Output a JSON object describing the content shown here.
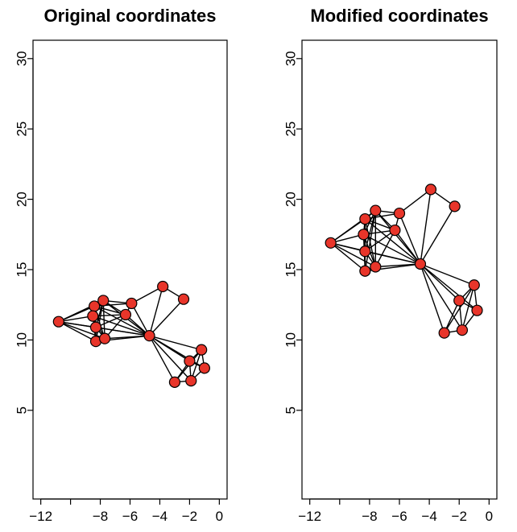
{
  "chart_data": [
    {
      "type": "network",
      "title": "Original coordinates",
      "xlim": [
        -12,
        0
      ],
      "ylim": [
        0,
        30
      ],
      "x_ticks": [
        -12,
        -8,
        -6,
        -4,
        -2,
        0
      ],
      "y_ticks": [
        5,
        10,
        15,
        20,
        25,
        30
      ],
      "node_color": "#e8352a",
      "nodes": [
        {
          "id": 0,
          "x": -10.8,
          "y": 11.3
        },
        {
          "id": 1,
          "x": -8.4,
          "y": 12.4
        },
        {
          "id": 2,
          "x": -7.8,
          "y": 12.8
        },
        {
          "id": 3,
          "x": -8.5,
          "y": 11.7
        },
        {
          "id": 4,
          "x": -8.3,
          "y": 10.9
        },
        {
          "id": 5,
          "x": -8.3,
          "y": 9.9
        },
        {
          "id": 6,
          "x": -7.7,
          "y": 10.1
        },
        {
          "id": 7,
          "x": -6.3,
          "y": 11.8
        },
        {
          "id": 8,
          "x": -5.9,
          "y": 12.6
        },
        {
          "id": 9,
          "x": -4.7,
          "y": 10.3
        },
        {
          "id": 10,
          "x": -3.8,
          "y": 13.8
        },
        {
          "id": 11,
          "x": -2.4,
          "y": 12.9
        },
        {
          "id": 12,
          "x": -1.2,
          "y": 9.3
        },
        {
          "id": 13,
          "x": -2.0,
          "y": 8.5
        },
        {
          "id": 14,
          "x": -1.0,
          "y": 8.0
        },
        {
          "id": 15,
          "x": -3.0,
          "y": 7.0
        },
        {
          "id": 16,
          "x": -1.9,
          "y": 7.1
        }
      ],
      "edges": [
        [
          0,
          1
        ],
        [
          0,
          2
        ],
        [
          0,
          3
        ],
        [
          0,
          4
        ],
        [
          0,
          5
        ],
        [
          0,
          6
        ],
        [
          0,
          9
        ],
        [
          1,
          2
        ],
        [
          1,
          3
        ],
        [
          1,
          4
        ],
        [
          1,
          5
        ],
        [
          1,
          6
        ],
        [
          1,
          7
        ],
        [
          1,
          8
        ],
        [
          1,
          9
        ],
        [
          2,
          3
        ],
        [
          2,
          4
        ],
        [
          2,
          5
        ],
        [
          2,
          6
        ],
        [
          2,
          7
        ],
        [
          2,
          8
        ],
        [
          2,
          9
        ],
        [
          3,
          4
        ],
        [
          3,
          5
        ],
        [
          3,
          6
        ],
        [
          3,
          7
        ],
        [
          3,
          9
        ],
        [
          4,
          5
        ],
        [
          4,
          6
        ],
        [
          4,
          7
        ],
        [
          4,
          9
        ],
        [
          5,
          6
        ],
        [
          5,
          9
        ],
        [
          6,
          7
        ],
        [
          6,
          9
        ],
        [
          7,
          8
        ],
        [
          7,
          9
        ],
        [
          8,
          9
        ],
        [
          8,
          10
        ],
        [
          9,
          10
        ],
        [
          10,
          11
        ],
        [
          9,
          11
        ],
        [
          9,
          12
        ],
        [
          9,
          13
        ],
        [
          9,
          14
        ],
        [
          9,
          15
        ],
        [
          9,
          16
        ],
        [
          12,
          13
        ],
        [
          12,
          14
        ],
        [
          12,
          16
        ],
        [
          13,
          14
        ],
        [
          13,
          15
        ],
        [
          13,
          16
        ],
        [
          14,
          16
        ],
        [
          15,
          16
        ],
        [
          12,
          15
        ]
      ]
    },
    {
      "type": "network",
      "title": "Modified coordinates",
      "xlim": [
        -12,
        0
      ],
      "ylim": [
        0,
        30
      ],
      "x_ticks": [
        -12,
        -8,
        -6,
        -4,
        -2,
        0
      ],
      "y_ticks": [
        5,
        10,
        15,
        20,
        25,
        30
      ],
      "node_color": "#e8352a",
      "nodes": [
        {
          "id": 0,
          "x": -10.6,
          "y": 16.9
        },
        {
          "id": 1,
          "x": -8.3,
          "y": 18.6
        },
        {
          "id": 2,
          "x": -7.6,
          "y": 19.2
        },
        {
          "id": 3,
          "x": -8.4,
          "y": 17.5
        },
        {
          "id": 4,
          "x": -8.3,
          "y": 16.3
        },
        {
          "id": 5,
          "x": -8.3,
          "y": 14.9
        },
        {
          "id": 6,
          "x": -7.6,
          "y": 15.2
        },
        {
          "id": 7,
          "x": -6.3,
          "y": 17.8
        },
        {
          "id": 8,
          "x": -6.0,
          "y": 19.0
        },
        {
          "id": 9,
          "x": -4.6,
          "y": 15.4
        },
        {
          "id": 10,
          "x": -3.9,
          "y": 20.7
        },
        {
          "id": 11,
          "x": -2.3,
          "y": 19.5
        },
        {
          "id": 12,
          "x": -1.0,
          "y": 13.9
        },
        {
          "id": 13,
          "x": -2.0,
          "y": 12.8
        },
        {
          "id": 14,
          "x": -0.8,
          "y": 12.1
        },
        {
          "id": 15,
          "x": -3.0,
          "y": 10.5
        },
        {
          "id": 16,
          "x": -1.8,
          "y": 10.7
        }
      ],
      "edges": [
        [
          0,
          1
        ],
        [
          0,
          2
        ],
        [
          0,
          3
        ],
        [
          0,
          4
        ],
        [
          0,
          5
        ],
        [
          0,
          6
        ],
        [
          0,
          9
        ],
        [
          1,
          2
        ],
        [
          1,
          3
        ],
        [
          1,
          4
        ],
        [
          1,
          5
        ],
        [
          1,
          6
        ],
        [
          1,
          7
        ],
        [
          1,
          8
        ],
        [
          1,
          9
        ],
        [
          2,
          3
        ],
        [
          2,
          4
        ],
        [
          2,
          5
        ],
        [
          2,
          6
        ],
        [
          2,
          7
        ],
        [
          2,
          8
        ],
        [
          2,
          9
        ],
        [
          3,
          4
        ],
        [
          3,
          5
        ],
        [
          3,
          6
        ],
        [
          3,
          7
        ],
        [
          3,
          9
        ],
        [
          4,
          5
        ],
        [
          4,
          6
        ],
        [
          4,
          7
        ],
        [
          4,
          9
        ],
        [
          5,
          6
        ],
        [
          5,
          9
        ],
        [
          6,
          7
        ],
        [
          6,
          9
        ],
        [
          7,
          8
        ],
        [
          7,
          9
        ],
        [
          8,
          9
        ],
        [
          8,
          10
        ],
        [
          9,
          10
        ],
        [
          10,
          11
        ],
        [
          9,
          11
        ],
        [
          9,
          12
        ],
        [
          9,
          13
        ],
        [
          9,
          14
        ],
        [
          9,
          15
        ],
        [
          9,
          16
        ],
        [
          12,
          13
        ],
        [
          12,
          14
        ],
        [
          12,
          16
        ],
        [
          13,
          14
        ],
        [
          13,
          15
        ],
        [
          13,
          16
        ],
        [
          14,
          16
        ],
        [
          15,
          16
        ],
        [
          12,
          15
        ]
      ]
    }
  ]
}
